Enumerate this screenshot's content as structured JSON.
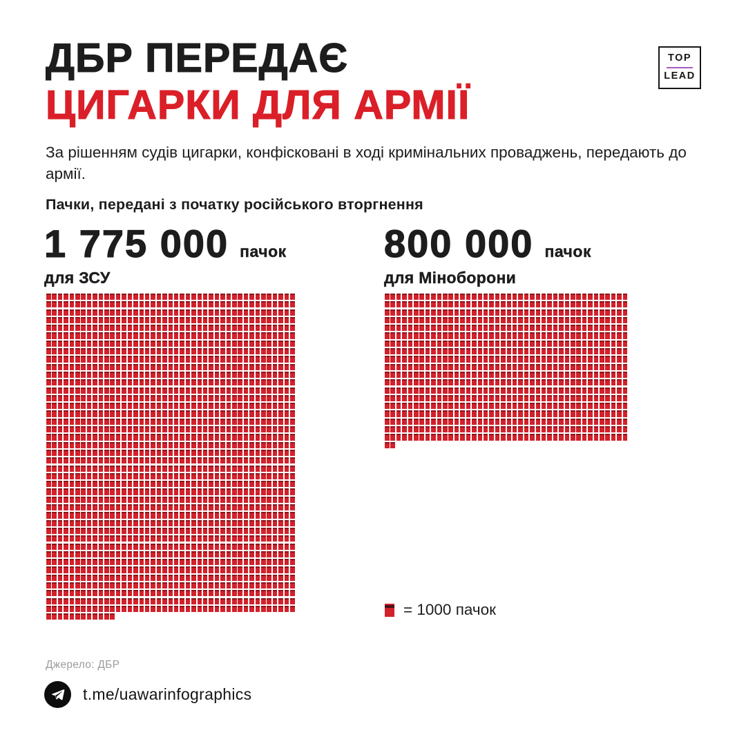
{
  "header": {
    "title_line1": "ДБР ПЕРЕДАЄ",
    "title_line2": "ЦИГАРКИ ДЛЯ АРМІЇ",
    "subtitle": "За рішенням судів цигарки, конфісковані в ході кримінальних проваджень, передають до армії."
  },
  "logo": {
    "line1": "TOP",
    "line2": "LEAD"
  },
  "chart_heading": "Пачки, передані з початку російського вторгнення",
  "chart_data": {
    "type": "waffle",
    "title": "Пачки, передані з початку російського вторгнення",
    "square_value": 1000,
    "square_unit": "пачок",
    "legend_label": "= 1000 пачок",
    "series": [
      {
        "name": "для ЗСУ",
        "value": 1775000,
        "value_label": "1 775 000",
        "unit_label": "пачок",
        "squares": 1775,
        "columns": 43
      },
      {
        "name": "для Міноборони",
        "value": 800000,
        "value_label": "800 000",
        "unit_label": "пачок",
        "squares": 800,
        "columns": 42
      }
    ],
    "layout": {
      "legend_position": "bottom-right-of-second-series",
      "grid": "pictogram, row-major, last row partial"
    }
  },
  "footer": {
    "source": "Джерело: ДБР",
    "telegram": "t.me/uawarinfographics"
  },
  "colors": {
    "accent_red": "#da1f28",
    "square_red": "#d2212b",
    "square_top_band": "#8c151b",
    "logo_divider_purple": "#a55ac2",
    "text_dark": "#1d1d1d",
    "source_gray": "#9b9b9b",
    "background": "#ffffff"
  }
}
